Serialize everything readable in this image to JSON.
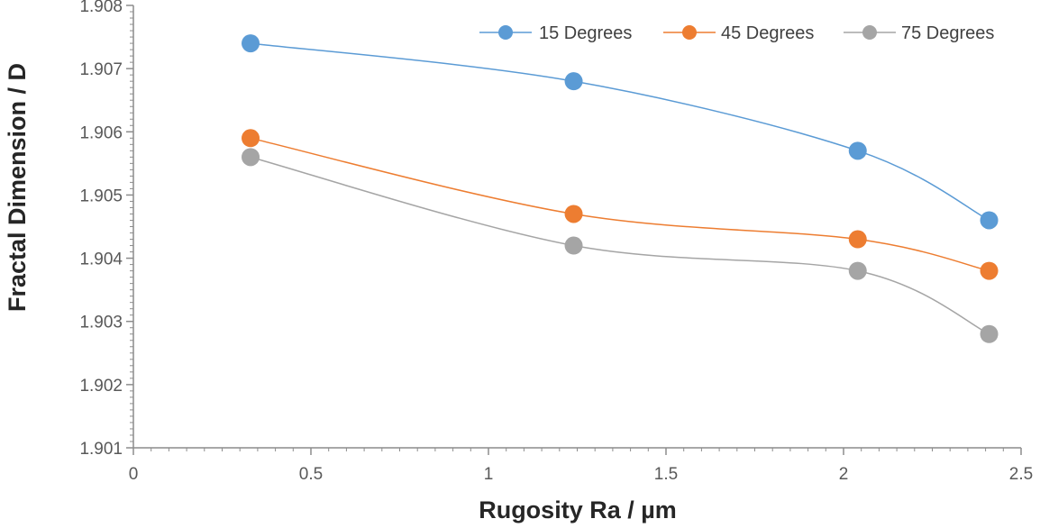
{
  "chart_data": {
    "type": "line",
    "title": "",
    "xlabel": "Rugosity Ra / µm",
    "ylabel": "Fractal Dimension / D",
    "xlim": [
      0,
      2.5
    ],
    "ylim": [
      1.901,
      1.908
    ],
    "x_ticks": [
      "0",
      "0.5",
      "1",
      "1.5",
      "2",
      "2.5"
    ],
    "y_ticks": [
      "1.901",
      "1.902",
      "1.903",
      "1.904",
      "1.905",
      "1.906",
      "1.907",
      "1.908"
    ],
    "grid": false,
    "legend_position": "top-right",
    "x": [
      0.33,
      1.24,
      2.04,
      2.41
    ],
    "series": [
      {
        "name": "15 Degrees",
        "color": "#5B9BD5",
        "values": [
          1.9074,
          1.9068,
          1.9057,
          1.9046
        ]
      },
      {
        "name": "45 Degrees",
        "color": "#ED7D31",
        "values": [
          1.9059,
          1.9047,
          1.9043,
          1.9038
        ]
      },
      {
        "name": "75 Degrees",
        "color": "#A5A5A5",
        "values": [
          1.9056,
          1.9042,
          1.9038,
          1.9028
        ]
      }
    ]
  }
}
